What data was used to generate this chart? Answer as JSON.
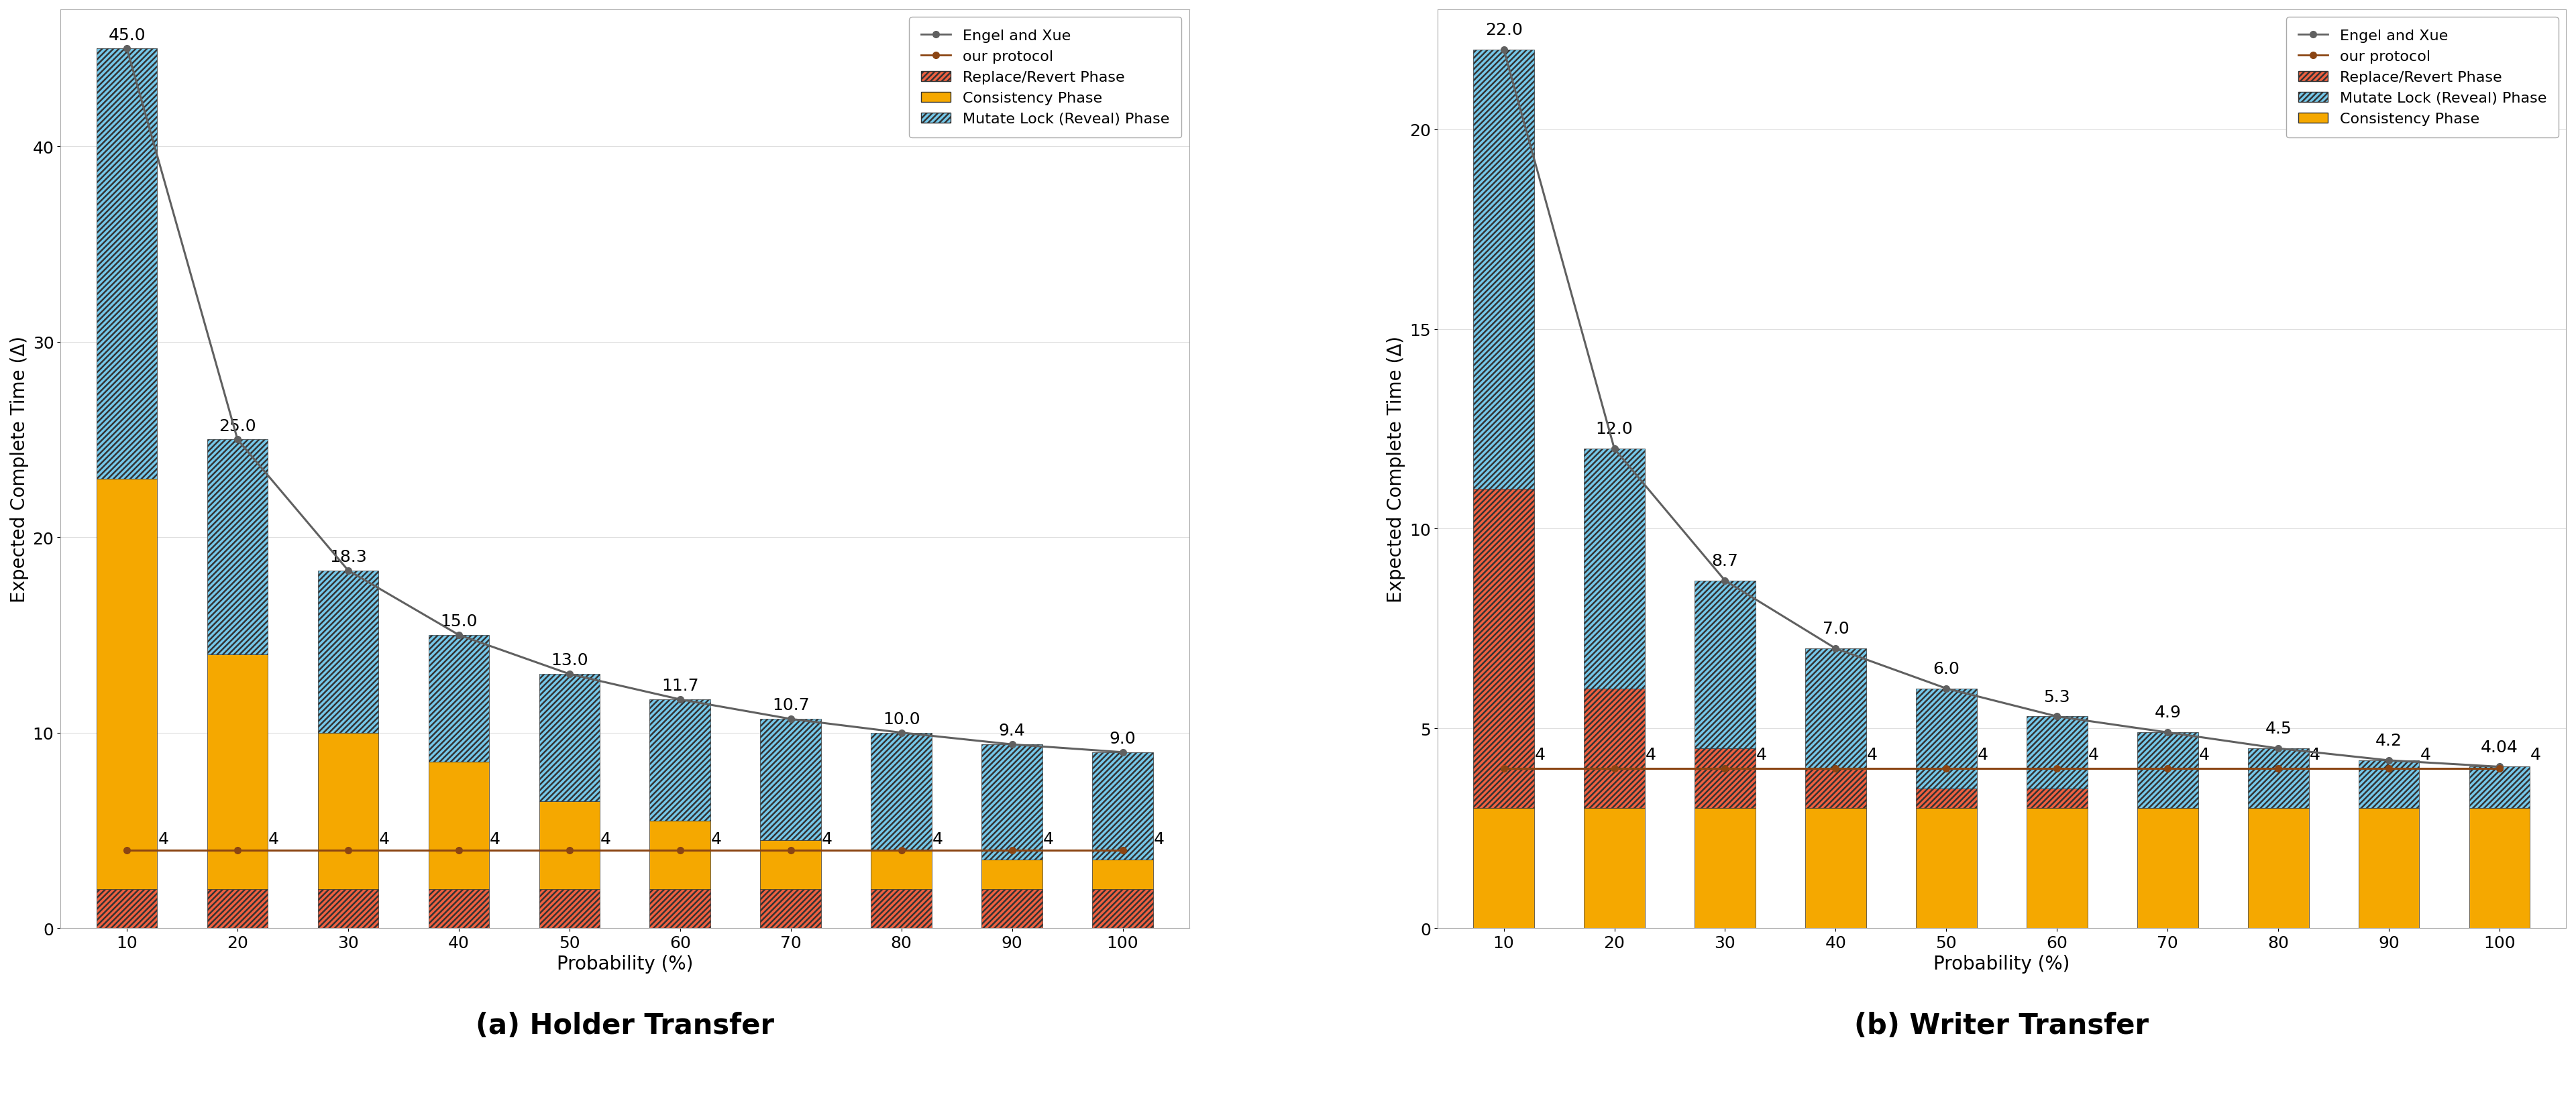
{
  "probabilities": [
    10,
    20,
    30,
    40,
    50,
    60,
    70,
    80,
    90,
    100
  ],
  "holder": {
    "engel_xue": [
      45.0,
      25.0,
      18.3,
      15.0,
      13.0,
      11.7,
      10.7,
      10.0,
      9.4,
      9.0
    ],
    "our_protocol": [
      4,
      4,
      4,
      4,
      4,
      4,
      4,
      4,
      4,
      4
    ],
    "replace_revert": [
      2.0,
      2.0,
      2.0,
      2.0,
      2.0,
      2.0,
      2.0,
      2.0,
      2.0,
      2.0
    ],
    "consistency": [
      21.0,
      12.0,
      8.0,
      6.5,
      4.5,
      3.5,
      2.5,
      2.0,
      1.5,
      1.5
    ],
    "mutate_lock": [
      22.0,
      11.0,
      8.3,
      6.5,
      6.5,
      6.2,
      6.2,
      6.0,
      5.9,
      5.5
    ],
    "bar_labels": [
      "45.0",
      "25.0",
      "18.3",
      "15.0",
      "13.0",
      "11.7",
      "10.7",
      "10.0",
      "9.4",
      "9.0"
    ],
    "our_labels": [
      "4",
      "4",
      "4",
      "4",
      "4",
      "4",
      "4",
      "4",
      "4",
      "4"
    ],
    "ylim": [
      0,
      47
    ],
    "yticks": [
      0,
      10,
      20,
      30,
      40
    ],
    "title": "(a) Holder Transfer"
  },
  "writer": {
    "engel_xue": [
      22.0,
      12.0,
      8.7,
      7.0,
      6.0,
      5.3,
      4.9,
      4.5,
      4.2,
      4.04
    ],
    "our_protocol": [
      4,
      4,
      4,
      4,
      4,
      4,
      4,
      4,
      4,
      4
    ],
    "consistency": [
      3.0,
      3.0,
      3.0,
      3.0,
      3.0,
      3.0,
      3.0,
      3.0,
      3.0,
      3.0
    ],
    "replace_revert": [
      8.0,
      3.0,
      1.5,
      1.0,
      0.5,
      0.5,
      0.0,
      0.0,
      0.0,
      0.0
    ],
    "mutate_lock": [
      11.0,
      6.0,
      4.2,
      3.0,
      2.5,
      1.8,
      1.9,
      1.5,
      1.2,
      1.04
    ],
    "bar_labels": [
      "22.0",
      "12.0",
      "8.7",
      "7.0",
      "6.0",
      "5.3",
      "4.9",
      "4.5",
      "4.2",
      "4.04"
    ],
    "our_labels": [
      "4",
      "4",
      "4",
      "4",
      "4",
      "4",
      "4",
      "4",
      "4",
      "4"
    ],
    "ylim": [
      0,
      23
    ],
    "yticks": [
      0,
      5,
      10,
      15,
      20
    ],
    "title": "(b) Writer Transfer"
  },
  "colors": {
    "replace_revert": "#f06040",
    "consistency": "#f5a800",
    "mutate_lock": "#75c8ea",
    "engel_xue_line": "#606060",
    "our_protocol_line": "#8B4513"
  },
  "xlabel": "Probability (%)",
  "ylabel": "Expected Complete Time (Δ)",
  "bg_color": "#ffffff"
}
